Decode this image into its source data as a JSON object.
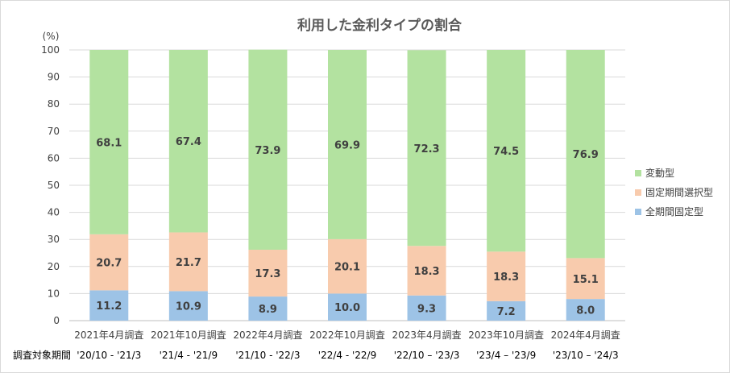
{
  "chart_data": {
    "type": "bar",
    "stacked": true,
    "title": "利用した金利タイプの割合",
    "ylabel": "(%)",
    "ylim": [
      0,
      100
    ],
    "yticks": [
      0,
      10,
      20,
      30,
      40,
      50,
      60,
      70,
      80,
      90,
      100
    ],
    "categories": [
      "2021年4月調査",
      "2021年10月調査",
      "2022年4月調査",
      "2022年10月調査",
      "2023年4月調査",
      "2023年10月調査",
      "2024年4月調査"
    ],
    "period_label": "調査対象期間",
    "periods": [
      "'20/10 - '21/3",
      "'21/4 - '21/9",
      "'21/10 - '22/3",
      "'22/4 - '22/9",
      "'22/10 – '23/3",
      "'23/4 – '23/9",
      "'23/10 – '24/3"
    ],
    "series": [
      {
        "name": "全期間固定型",
        "color": "#9dc3e6",
        "values": [
          11.2,
          10.9,
          8.9,
          10.0,
          9.3,
          7.2,
          8.0
        ]
      },
      {
        "name": "固定期間選択型",
        "color": "#f8cbad",
        "values": [
          20.7,
          21.7,
          17.3,
          20.1,
          18.3,
          18.3,
          15.1
        ]
      },
      {
        "name": "変動型",
        "color": "#b3e2a0",
        "values": [
          68.1,
          67.4,
          73.9,
          69.9,
          72.3,
          74.5,
          76.9
        ]
      }
    ],
    "legend": "right"
  }
}
